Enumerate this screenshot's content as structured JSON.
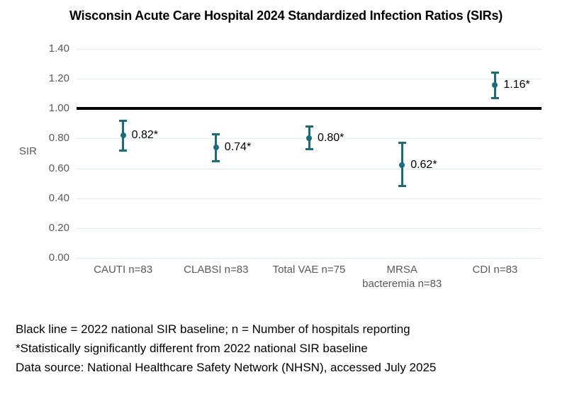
{
  "title": "Wisconsin Acute Care Hospital 2024 Standardized Infection Ratios (SIRs)",
  "colors": {
    "point": "#186d79",
    "baseline": "#000000",
    "gridline": "#e1ebf0",
    "axis_text": "#595959",
    "label_text": "#000000"
  },
  "chart_data": {
    "type": "scatter",
    "title": "Wisconsin Acute Care Hospital 2024 Standardized Infection Ratios (SIRs)",
    "xlabel": "",
    "ylabel": "SIR",
    "ylim": [
      0,
      1.4
    ],
    "grid": true,
    "legend": false,
    "yticks": [
      0.0,
      0.2,
      0.4,
      0.6,
      0.8,
      1.0,
      1.2,
      1.4
    ],
    "ytick_labels": [
      "0.00",
      "0.20",
      "0.40",
      "0.60",
      "0.80",
      "1.00",
      "1.20",
      "1.40"
    ],
    "baseline": {
      "value": 1.0,
      "meaning": "2022 national SIR baseline"
    },
    "categories": [
      "CAUTI n=83",
      "CLABSI n=83",
      "Total VAE n=75",
      "MRSA\nbacteremia n=83",
      "CDI n=83"
    ],
    "series": [
      {
        "name": "SIR",
        "values": [
          0.82,
          0.74,
          0.8,
          0.62,
          1.16
        ],
        "point_labels": [
          "0.82*",
          "0.74*",
          "0.80*",
          "0.62*",
          "1.16*"
        ],
        "ci_low": [
          0.72,
          0.65,
          0.73,
          0.48,
          1.07
        ],
        "ci_high": [
          0.92,
          0.83,
          0.88,
          0.77,
          1.24
        ]
      }
    ]
  },
  "footnotes": [
    "Black line = 2022 national SIR baseline; n = Number of hospitals reporting",
    "*Statistically significantly different from 2022 national SIR baseline",
    "Data source: National Healthcare Safety Network (NHSN), accessed July 2025"
  ]
}
